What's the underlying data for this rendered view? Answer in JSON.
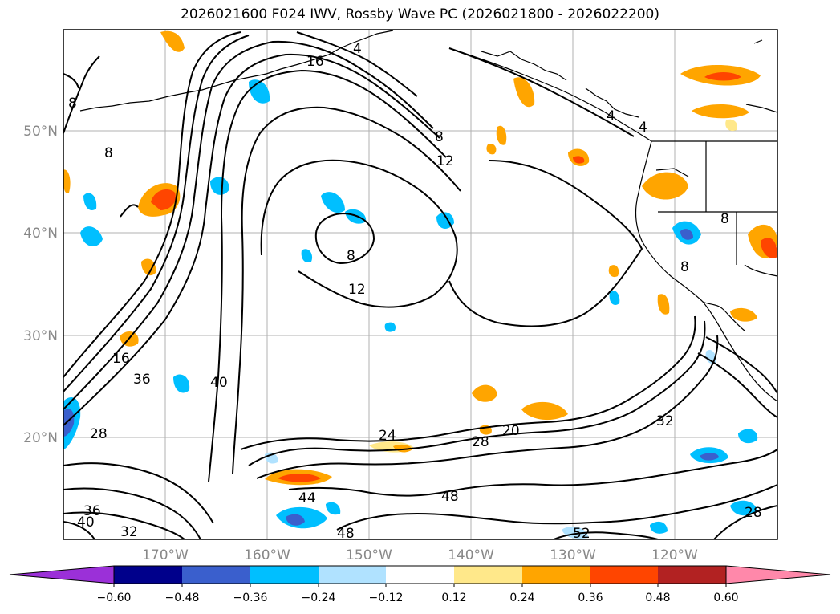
{
  "title": "2026021600 F024 IWV, Rossby Wave PC (2026021800 - 2026022200)",
  "lon_labels": [
    "170°W",
    "160°W",
    "150°W",
    "140°W",
    "130°W",
    "120°W"
  ],
  "lat_labels": [
    "50°N",
    "40°N",
    "30°N",
    "20°N"
  ],
  "contour_labels": [
    "4",
    "4",
    "4",
    "8",
    "8",
    "8",
    "8",
    "8",
    "12",
    "12",
    "16",
    "16",
    "20",
    "24",
    "28",
    "28",
    "32",
    "32",
    "36",
    "36",
    "40",
    "40",
    "44",
    "48",
    "48",
    "52",
    "28",
    "8"
  ],
  "colorbar": {
    "tick_labels": [
      "−0.60",
      "−0.48",
      "−0.36",
      "−0.24",
      "−0.12",
      "0.12",
      "0.24",
      "0.36",
      "0.48",
      "0.60"
    ],
    "colors": [
      "#9b30d8",
      "#00008b",
      "#3a5fcd",
      "#00bfff",
      "#b0e2ff",
      "#ffffff",
      "#ffe88a",
      "#ffa500",
      "#ff4500",
      "#b22222",
      "#ff88aa"
    ]
  },
  "chart_data": {
    "type": "heatmap",
    "title": "2026021600 F024 IWV, Rossby Wave PC (2026021800 - 2026022200)",
    "projection": "PlateCarree",
    "lon_range": [
      -180,
      -110
    ],
    "lat_range": [
      10,
      60
    ],
    "contour_field": "IWV",
    "contour_levels": [
      4,
      8,
      12,
      16,
      20,
      24,
      28,
      32,
      36,
      40,
      44,
      48,
      52
    ],
    "shaded_field": "Rossby Wave PC",
    "shade_levels": [
      -0.6,
      -0.48,
      -0.36,
      -0.24,
      -0.12,
      0.12,
      0.24,
      0.36,
      0.48,
      0.6
    ]
  }
}
